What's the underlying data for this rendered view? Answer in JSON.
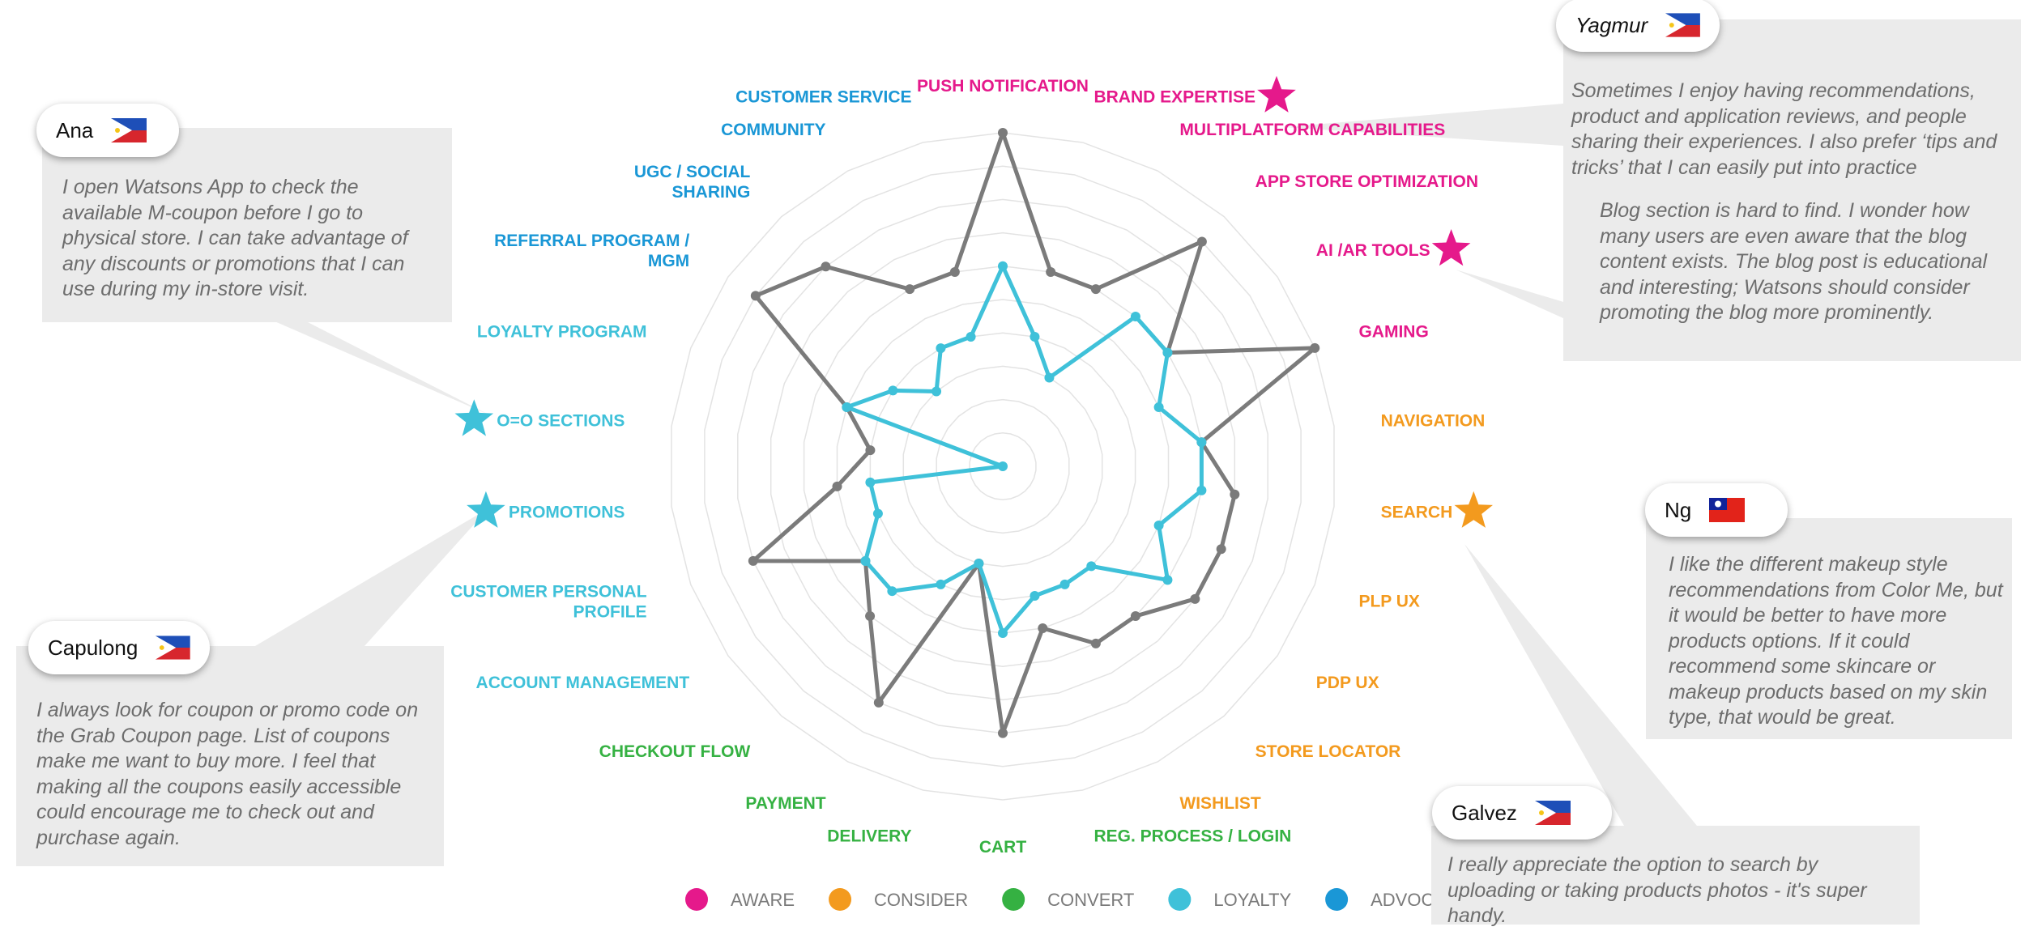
{
  "chart_data": {
    "type": "radar",
    "title": "",
    "r_range": [
      0,
      10
    ],
    "grid_rings": 10,
    "categories": [
      {
        "label": "PUSH NOTIFICATION",
        "stage": "aware",
        "star": false
      },
      {
        "label": "BRAND EXPERTISE",
        "stage": "aware",
        "star": true
      },
      {
        "label": "MULTIPLATFORM CAPABILITIES",
        "stage": "aware",
        "star": false
      },
      {
        "label": "APP STORE OPTIMIZATION",
        "stage": "aware",
        "star": false
      },
      {
        "label": "AI /AR TOOLS",
        "stage": "aware",
        "star": true
      },
      {
        "label": "GAMING",
        "stage": "aware",
        "star": false
      },
      {
        "label": "NAVIGATION",
        "stage": "consider",
        "star": false
      },
      {
        "label": "SEARCH",
        "stage": "consider",
        "star": true
      },
      {
        "label": "PLP UX",
        "stage": "consider",
        "star": false
      },
      {
        "label": "PDP UX",
        "stage": "consider",
        "star": false
      },
      {
        "label": "STORE LOCATOR",
        "stage": "consider",
        "star": false
      },
      {
        "label": "WISHLIST",
        "stage": "consider",
        "star": false
      },
      {
        "label": "REG. PROCESS / LOGIN",
        "stage": "convert",
        "star": false
      },
      {
        "label": "CART",
        "stage": "convert",
        "star": false
      },
      {
        "label": "DELIVERY",
        "stage": "convert",
        "star": false
      },
      {
        "label": "PAYMENT",
        "stage": "convert",
        "star": false
      },
      {
        "label": "CHECKOUT FLOW",
        "stage": "convert",
        "star": false
      },
      {
        "label": "ACCOUNT MANAGEMENT",
        "stage": "loyalty",
        "star": false
      },
      {
        "label": "CUSTOMER PERSONAL PROFILE",
        "stage": "loyalty",
        "star": false
      },
      {
        "label": "PROMOTIONS",
        "stage": "loyalty",
        "star": true
      },
      {
        "label": "O=O SECTIONS",
        "stage": "loyalty",
        "star": true
      },
      {
        "label": "LOYALTY PROGRAM",
        "stage": "loyalty",
        "star": false
      },
      {
        "label": "REFERRAL PROGRAM / MGM",
        "stage": "advocate",
        "star": false
      },
      {
        "label": "UGC / SOCIAL SHARING",
        "stage": "advocate",
        "star": false
      },
      {
        "label": "COMMUNITY",
        "stage": "advocate",
        "star": false
      },
      {
        "label": "CUSTOMER SERVICE",
        "stage": "advocate",
        "star": false
      }
    ],
    "series": [
      {
        "name": "gray",
        "color": "#7b7b7b",
        "values": [
          10,
          6,
          6,
          9,
          6,
          10,
          6,
          7,
          7,
          7,
          6,
          6,
          5,
          8,
          3,
          8,
          6,
          5,
          8,
          5,
          4,
          5,
          9,
          8,
          6,
          6
        ]
      },
      {
        "name": "blue",
        "color": "#3fc1d9",
        "values": [
          6,
          4,
          3,
          6,
          6,
          5,
          6,
          6,
          5,
          6,
          4,
          4,
          4,
          5,
          3,
          4,
          5,
          5,
          4,
          4,
          0,
          5,
          4,
          3,
          4,
          4
        ]
      }
    ],
    "legend": [
      {
        "label": "AWARE",
        "color": "#e5198b"
      },
      {
        "label": "CONSIDER",
        "color": "#f39a1e"
      },
      {
        "label": "CONVERT",
        "color": "#35b142"
      },
      {
        "label": "LOYALTY",
        "color": "#3fc1d9"
      },
      {
        "label": "ADVOCATE",
        "color": "#1a97d6"
      }
    ],
    "legend_position": "bottom"
  },
  "stage_colors": {
    "aware": "#e5198b",
    "consider": "#f39a1e",
    "convert": "#35b142",
    "loyalty": "#3fc1d9",
    "advocate": "#1a97d6"
  },
  "personas": {
    "ana": {
      "name": "Ana",
      "flag": "philippines",
      "quote": "I open Watsons App to check the available M-coupon before I go to physical store. I can take advantage of any discounts or promotions that I can use during my in-store visit."
    },
    "capulong": {
      "name": "Capulong",
      "flag": "philippines",
      "quote": "I always look for coupon or promo code on the Grab Coupon page. List of coupons make me want to buy more. I feel that making all the coupons easily accessible could encourage me to check out and purchase again."
    },
    "yagmur": {
      "name": "Yagmur",
      "flag": "philippines",
      "quote": "Sometimes I enjoy having recommendations, product and application reviews, and people sharing their experiences. I also prefer ‘tips and tricks’ that I can easily put into practice",
      "quote2": "Blog section is hard to find. I wonder how many users are even aware that the blog content exists. The blog post is educational and interesting; Watsons should consider promoting the blog more prominently."
    },
    "ng": {
      "name": "Ng",
      "flag": "taiwan",
      "quote": "I like the different makeup style recommendations from Color Me, but it would be better to have more products options. If it could recommend some skincare or makeup products based on my skin type, that would be great."
    },
    "galvez": {
      "name": "Galvez",
      "flag": "philippines",
      "quote": "I really appreciate the option to search by uploading or taking products photos - it's super handy."
    }
  }
}
